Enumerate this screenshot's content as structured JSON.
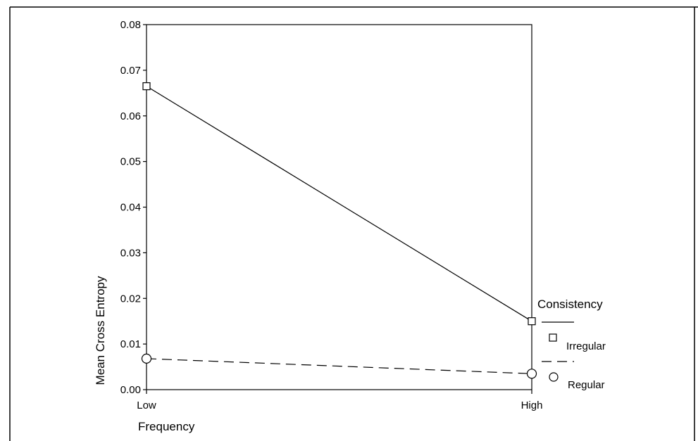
{
  "chart_data": {
    "type": "line",
    "title": "",
    "xlabel": "Frequency",
    "ylabel": "Mean Cross Entropy",
    "categories": [
      "Low",
      "High"
    ],
    "ylim": [
      0,
      0.08
    ],
    "yticks": [
      0.0,
      0.01,
      0.02,
      0.03,
      0.04,
      0.05,
      0.06,
      0.07,
      0.08
    ],
    "ytick_labels": [
      "0.00",
      "0.01",
      "0.02",
      "0.03",
      "0.04",
      "0.05",
      "0.06",
      "0.07",
      "0.08"
    ],
    "grid": false,
    "legend": {
      "title": "Consistency",
      "position": "right"
    },
    "series": [
      {
        "name": "Irregular",
        "values": [
          0.0665,
          0.015
        ],
        "line": "solid",
        "marker": "square"
      },
      {
        "name": "Regular",
        "values": [
          0.0068,
          0.0035
        ],
        "line": "dashed",
        "marker": "circle"
      }
    ]
  }
}
